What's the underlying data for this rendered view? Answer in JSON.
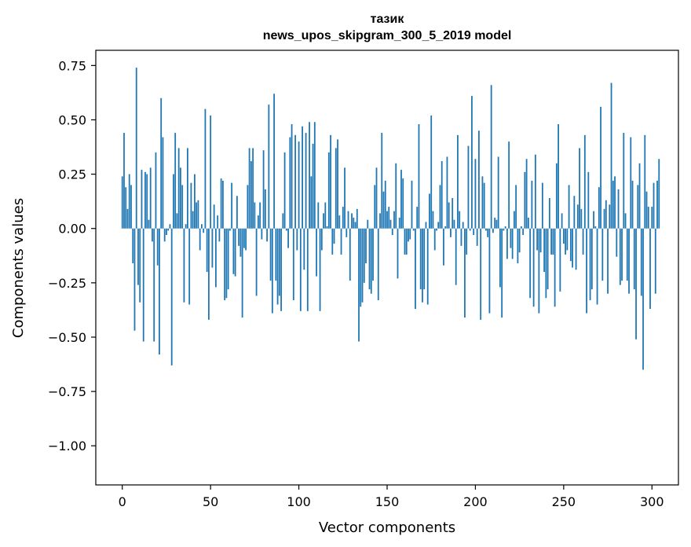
{
  "chart_data": {
    "type": "bar",
    "title_line1": "тазик",
    "title_line2": "news_upos_skipgram_300_5_2019 model",
    "xlabel": "Vector components",
    "ylabel": "Components values",
    "xlim": [
      -15,
      315
    ],
    "ylim": [
      -1.18,
      0.82
    ],
    "xticks": [
      0,
      50,
      100,
      150,
      200,
      250,
      300
    ],
    "xtick_labels": [
      "0",
      "50",
      "100",
      "150",
      "200",
      "250",
      "300"
    ],
    "yticks": [
      0.75,
      0.5,
      0.25,
      0.0,
      -0.25,
      -0.5,
      -0.75,
      -1.0
    ],
    "ytick_labels": [
      "0.75",
      "0.50",
      "0.25",
      "0.00",
      "−0.25",
      "−0.50",
      "−0.75",
      "−1.00"
    ],
    "bar_color": "#1f77b4",
    "series": [
      {
        "name": "components",
        "values": [
          0.24,
          0.44,
          0.19,
          0.09,
          0.25,
          0.2,
          -0.16,
          -0.47,
          0.74,
          -0.26,
          -0.34,
          0.27,
          -0.52,
          0.26,
          0.25,
          0.04,
          0.28,
          -0.06,
          -0.52,
          0.35,
          -0.17,
          -0.58,
          0.6,
          0.42,
          -0.06,
          -0.03,
          -0.01,
          0.02,
          -0.63,
          0.25,
          0.44,
          0.07,
          0.37,
          0.28,
          0.2,
          -0.34,
          0.02,
          0.37,
          -0.35,
          0.21,
          0.08,
          0.25,
          0.12,
          0.13,
          -0.1,
          0.02,
          -0.02,
          0.55,
          -0.2,
          -0.42,
          0.52,
          -0.18,
          0.11,
          -0.27,
          0.06,
          -0.06,
          0.23,
          0.22,
          -0.33,
          -0.32,
          -0.28,
          -0.01,
          0.21,
          -0.21,
          -0.22,
          0.15,
          -0.08,
          -0.13,
          -0.41,
          -0.09,
          -0.1,
          0.2,
          0.37,
          0.31,
          0.37,
          0.12,
          -0.31,
          0.06,
          0.12,
          -0.05,
          0.36,
          0.18,
          -0.06,
          0.57,
          -0.24,
          -0.39,
          0.62,
          -0.24,
          -0.35,
          -0.31,
          -0.38,
          0.07,
          0.35,
          -0.01,
          -0.09,
          0.42,
          0.48,
          -0.33,
          0.43,
          -0.1,
          0.4,
          -0.38,
          0.47,
          -0.19,
          0.44,
          -0.38,
          0.49,
          0.24,
          0.39,
          0.49,
          -0.22,
          0.12,
          -0.38,
          -0.1,
          0.07,
          0.12,
          0.01,
          0.35,
          0.43,
          -0.12,
          -0.07,
          0.37,
          0.41,
          0.06,
          -0.12,
          0.1,
          0.28,
          -0.04,
          0.08,
          -0.24,
          0.07,
          0.05,
          0.03,
          0.09,
          -0.52,
          -0.36,
          -0.34,
          -0.25,
          -0.16,
          0.04,
          -0.28,
          -0.3,
          -0.24,
          0.2,
          0.28,
          -0.33,
          0.07,
          0.44,
          0.17,
          0.22,
          0.08,
          0.1,
          0.04,
          -0.03,
          0.08,
          0.3,
          -0.23,
          0.05,
          0.27,
          0.23,
          -0.12,
          -0.12,
          -0.06,
          -0.05,
          0.22,
          -0.01,
          -0.37,
          0.1,
          0.48,
          -0.28,
          -0.34,
          -0.28,
          0.03,
          -0.35,
          0.16,
          0.52,
          0.08,
          -0.1,
          -0.01,
          0.03,
          0.2,
          0.31,
          -0.17,
          0.01,
          0.33,
          0.12,
          -0.04,
          0.14,
          0.04,
          -0.26,
          0.43,
          0.08,
          -0.08,
          0.03,
          -0.41,
          -0.12,
          0.38,
          -0.01,
          0.61,
          -0.03,
          0.32,
          -0.08,
          0.45,
          -0.42,
          0.24,
          0.21,
          -0.01,
          -0.04,
          -0.39,
          0.66,
          -0.02,
          0.05,
          0.04,
          0.33,
          -0.27,
          -0.41,
          -0.01,
          0.01,
          -0.14,
          0.4,
          -0.09,
          -0.14,
          0.08,
          0.2,
          -0.16,
          -0.11,
          0.01,
          -0.03,
          0.26,
          0.32,
          0.05,
          -0.32,
          0.22,
          -0.36,
          0.34,
          -0.1,
          -0.39,
          -0.11,
          0.21,
          -0.2,
          -0.32,
          -0.28,
          0.14,
          -0.12,
          -0.12,
          -0.36,
          0.3,
          0.48,
          -0.29,
          0.07,
          -0.07,
          -0.12,
          -0.1,
          0.2,
          -0.15,
          -0.18,
          0.15,
          -0.19,
          0.11,
          0.37,
          0.09,
          -0.12,
          0.43,
          -0.39,
          0.26,
          -0.33,
          -0.28,
          0.08,
          0.01,
          -0.35,
          0.19,
          0.56,
          -0.24,
          0.09,
          0.13,
          -0.3,
          0.11,
          0.67,
          0.22,
          0.24,
          -0.13,
          0.18,
          -0.26,
          -0.24,
          0.44,
          0.07,
          -0.24,
          -0.3,
          0.42,
          0.22,
          -0.28,
          -0.51,
          0.2,
          0.3,
          -0.31,
          -0.65,
          0.43,
          0.17,
          0.1,
          -0.37,
          0.1,
          0.21,
          -0.3,
          0.22,
          0.32
        ]
      }
    ]
  }
}
